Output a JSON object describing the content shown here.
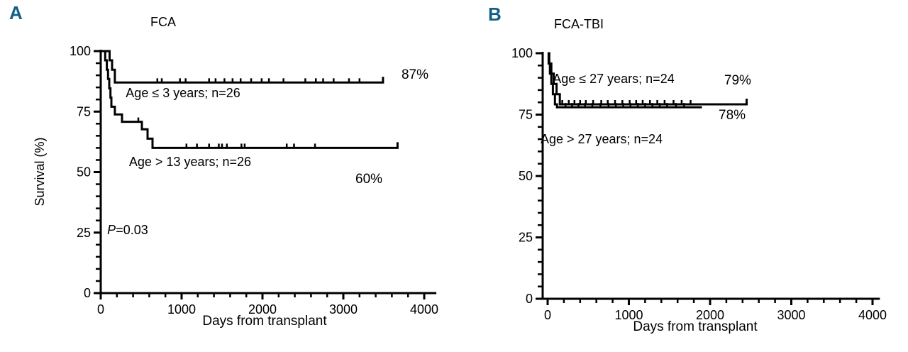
{
  "ui": {
    "background": "#ffffff",
    "panel_letter_color": "#135e85",
    "curve_color": "#000000",
    "text_color": "#000000"
  },
  "chart_data": {
    "type": "line",
    "description": "Kaplan-Meier survival step curves, two panels",
    "panels": [
      {
        "panel_letter": "A",
        "title": "FCA",
        "xlabel": "Days from transplant",
        "ylabel": "Survival (%)",
        "xlim": [
          0,
          4000
        ],
        "ylim": [
          0,
          100
        ],
        "x_ticks": [
          0,
          1000,
          2000,
          3000,
          4000
        ],
        "y_ticks": [
          0,
          25,
          50,
          75,
          100
        ],
        "x_minor_step": 200,
        "y_minor_step": 5,
        "series": [
          {
            "name": "Age ≤ 3 years; n=26",
            "final_value_pct": 87,
            "final_label": "87%",
            "steps": [
              [
                0,
                100
              ],
              [
                110,
                96.2
              ],
              [
                140,
                92.3
              ],
              [
                175,
                87
              ]
            ],
            "end_day": 3490,
            "end_censor": true,
            "censors": [
              [
                700,
                87
              ],
              [
                755,
                87
              ],
              [
                980,
                87
              ],
              [
                1050,
                87
              ],
              [
                1340,
                87
              ],
              [
                1420,
                87
              ],
              [
                1530,
                87
              ],
              [
                1630,
                87
              ],
              [
                1730,
                87
              ],
              [
                1860,
                87
              ],
              [
                1990,
                87
              ],
              [
                2080,
                87
              ],
              [
                2260,
                87
              ],
              [
                2530,
                87
              ],
              [
                2660,
                87
              ],
              [
                2750,
                87
              ],
              [
                2880,
                87
              ],
              [
                3070,
                87
              ],
              [
                3200,
                87
              ]
            ]
          },
          {
            "name": "Age > 13 years; n=26",
            "final_value_pct": 60,
            "final_label": "60%",
            "steps": [
              [
                0,
                100
              ],
              [
                55,
                96.2
              ],
              [
                75,
                92.3
              ],
              [
                90,
                88.5
              ],
              [
                105,
                84.6
              ],
              [
                120,
                80.8
              ],
              [
                132,
                77
              ],
              [
                175,
                73.8
              ],
              [
                263,
                70.8
              ],
              [
                509,
                67.7
              ],
              [
                579,
                63.8
              ],
              [
                640,
                60
              ]
            ],
            "end_day": 3670,
            "end_censor": true,
            "censors": [
              [
                465,
                70.8
              ],
              [
                1060,
                60
              ],
              [
                1190,
                60
              ],
              [
                1340,
                60
              ],
              [
                1460,
                60
              ],
              [
                1500,
                60
              ],
              [
                1560,
                60
              ],
              [
                1740,
                60
              ],
              [
                1780,
                60
              ],
              [
                2300,
                60
              ],
              [
                2390,
                60
              ],
              [
                2650,
                60
              ]
            ]
          }
        ],
        "annotations": [
          {
            "text": "Age ≤ 3 years; n=26",
            "day": 1018,
            "pct": 81,
            "size": 18,
            "name": "series-1-label"
          },
          {
            "text": "Age > 13 years; n=26",
            "day": 1105,
            "pct": 52.5,
            "size": 18,
            "name": "series-2-label"
          },
          {
            "text": "87%",
            "day": 3886,
            "pct": 88.6,
            "size": 19,
            "name": "percent-label-87"
          },
          {
            "text": "60%",
            "day": 3316,
            "pct": 45.5,
            "size": 19,
            "name": "percent-label-60"
          },
          {
            "italic_prefix": "P",
            "text": "=0.03",
            "day": 333,
            "pct": 24.3,
            "size": 18,
            "name": "p-value-label"
          }
        ]
      },
      {
        "panel_letter": "B",
        "title": "FCA-TBI",
        "xlabel": "Days from transplant",
        "ylabel": null,
        "xlim": [
          0,
          4000
        ],
        "ylim": [
          0,
          100
        ],
        "x_ticks": [
          0,
          1000,
          2000,
          3000,
          4000
        ],
        "y_ticks": [
          0,
          25,
          50,
          75,
          100
        ],
        "x_minor_step": 200,
        "y_minor_step": 5,
        "series": [
          {
            "name": "Age ≤ 27 years; n=24",
            "final_value_pct": 79,
            "final_label": "79%",
            "steps": [
              [
                0,
                100
              ],
              [
                20,
                95.8
              ],
              [
                45,
                91.7
              ],
              [
                75,
                87.5
              ],
              [
                110,
                83.3
              ],
              [
                150,
                79.2
              ]
            ],
            "end_day": 2450,
            "end_censor": true,
            "censors": [
              [
                180,
                79.2
              ],
              [
                260,
                79.2
              ],
              [
                330,
                79.2
              ],
              [
                400,
                79.2
              ],
              [
                470,
                79.2
              ],
              [
                560,
                79.2
              ],
              [
                660,
                79.2
              ],
              [
                740,
                79.2
              ],
              [
                830,
                79.2
              ],
              [
                920,
                79.2
              ],
              [
                1010,
                79.2
              ],
              [
                1090,
                79.2
              ],
              [
                1170,
                79.2
              ],
              [
                1260,
                79.2
              ],
              [
                1350,
                79.2
              ],
              [
                1440,
                79.2
              ],
              [
                1550,
                79.2
              ],
              [
                1650,
                79.2
              ],
              [
                1760,
                79.2
              ]
            ]
          },
          {
            "name": "Age > 27 years; n=24",
            "final_value_pct": 78,
            "final_label": "78%",
            "steps": [
              [
                0,
                100
              ],
              [
                12,
                95.8
              ],
              [
                28,
                91.7
              ],
              [
                45,
                87.5
              ],
              [
                65,
                83.3
              ],
              [
                90,
                79.2
              ],
              [
                115,
                78
              ]
            ],
            "end_day": 1900,
            "end_censor": false,
            "censors": [
              [
                220,
                78
              ],
              [
                300,
                78
              ],
              [
                380,
                78
              ],
              [
                460,
                78
              ],
              [
                550,
                78
              ],
              [
                650,
                78
              ],
              [
                750,
                78
              ],
              [
                840,
                78
              ],
              [
                930,
                78
              ],
              [
                1020,
                78
              ],
              [
                1110,
                78
              ],
              [
                1200,
                78
              ],
              [
                1290,
                78
              ],
              [
                1380,
                78
              ],
              [
                1470,
                78
              ],
              [
                1580,
                78
              ],
              [
                1680,
                78
              ]
            ]
          }
        ],
        "annotations": [
          {
            "text": "Age ≤ 27 years; n=24",
            "day": 812,
            "pct": 87.9,
            "size": 18,
            "name": "series-1-label"
          },
          {
            "text": "Age > 27 years; n=24",
            "day": 664,
            "pct": 63.3,
            "size": 18,
            "name": "series-2-label"
          },
          {
            "text": "79%",
            "day": 2340,
            "pct": 87.3,
            "size": 19,
            "name": "percent-label-79"
          },
          {
            "text": "78%",
            "day": 2271,
            "pct": 73.1,
            "size": 19,
            "name": "percent-label-78"
          }
        ]
      }
    ]
  }
}
